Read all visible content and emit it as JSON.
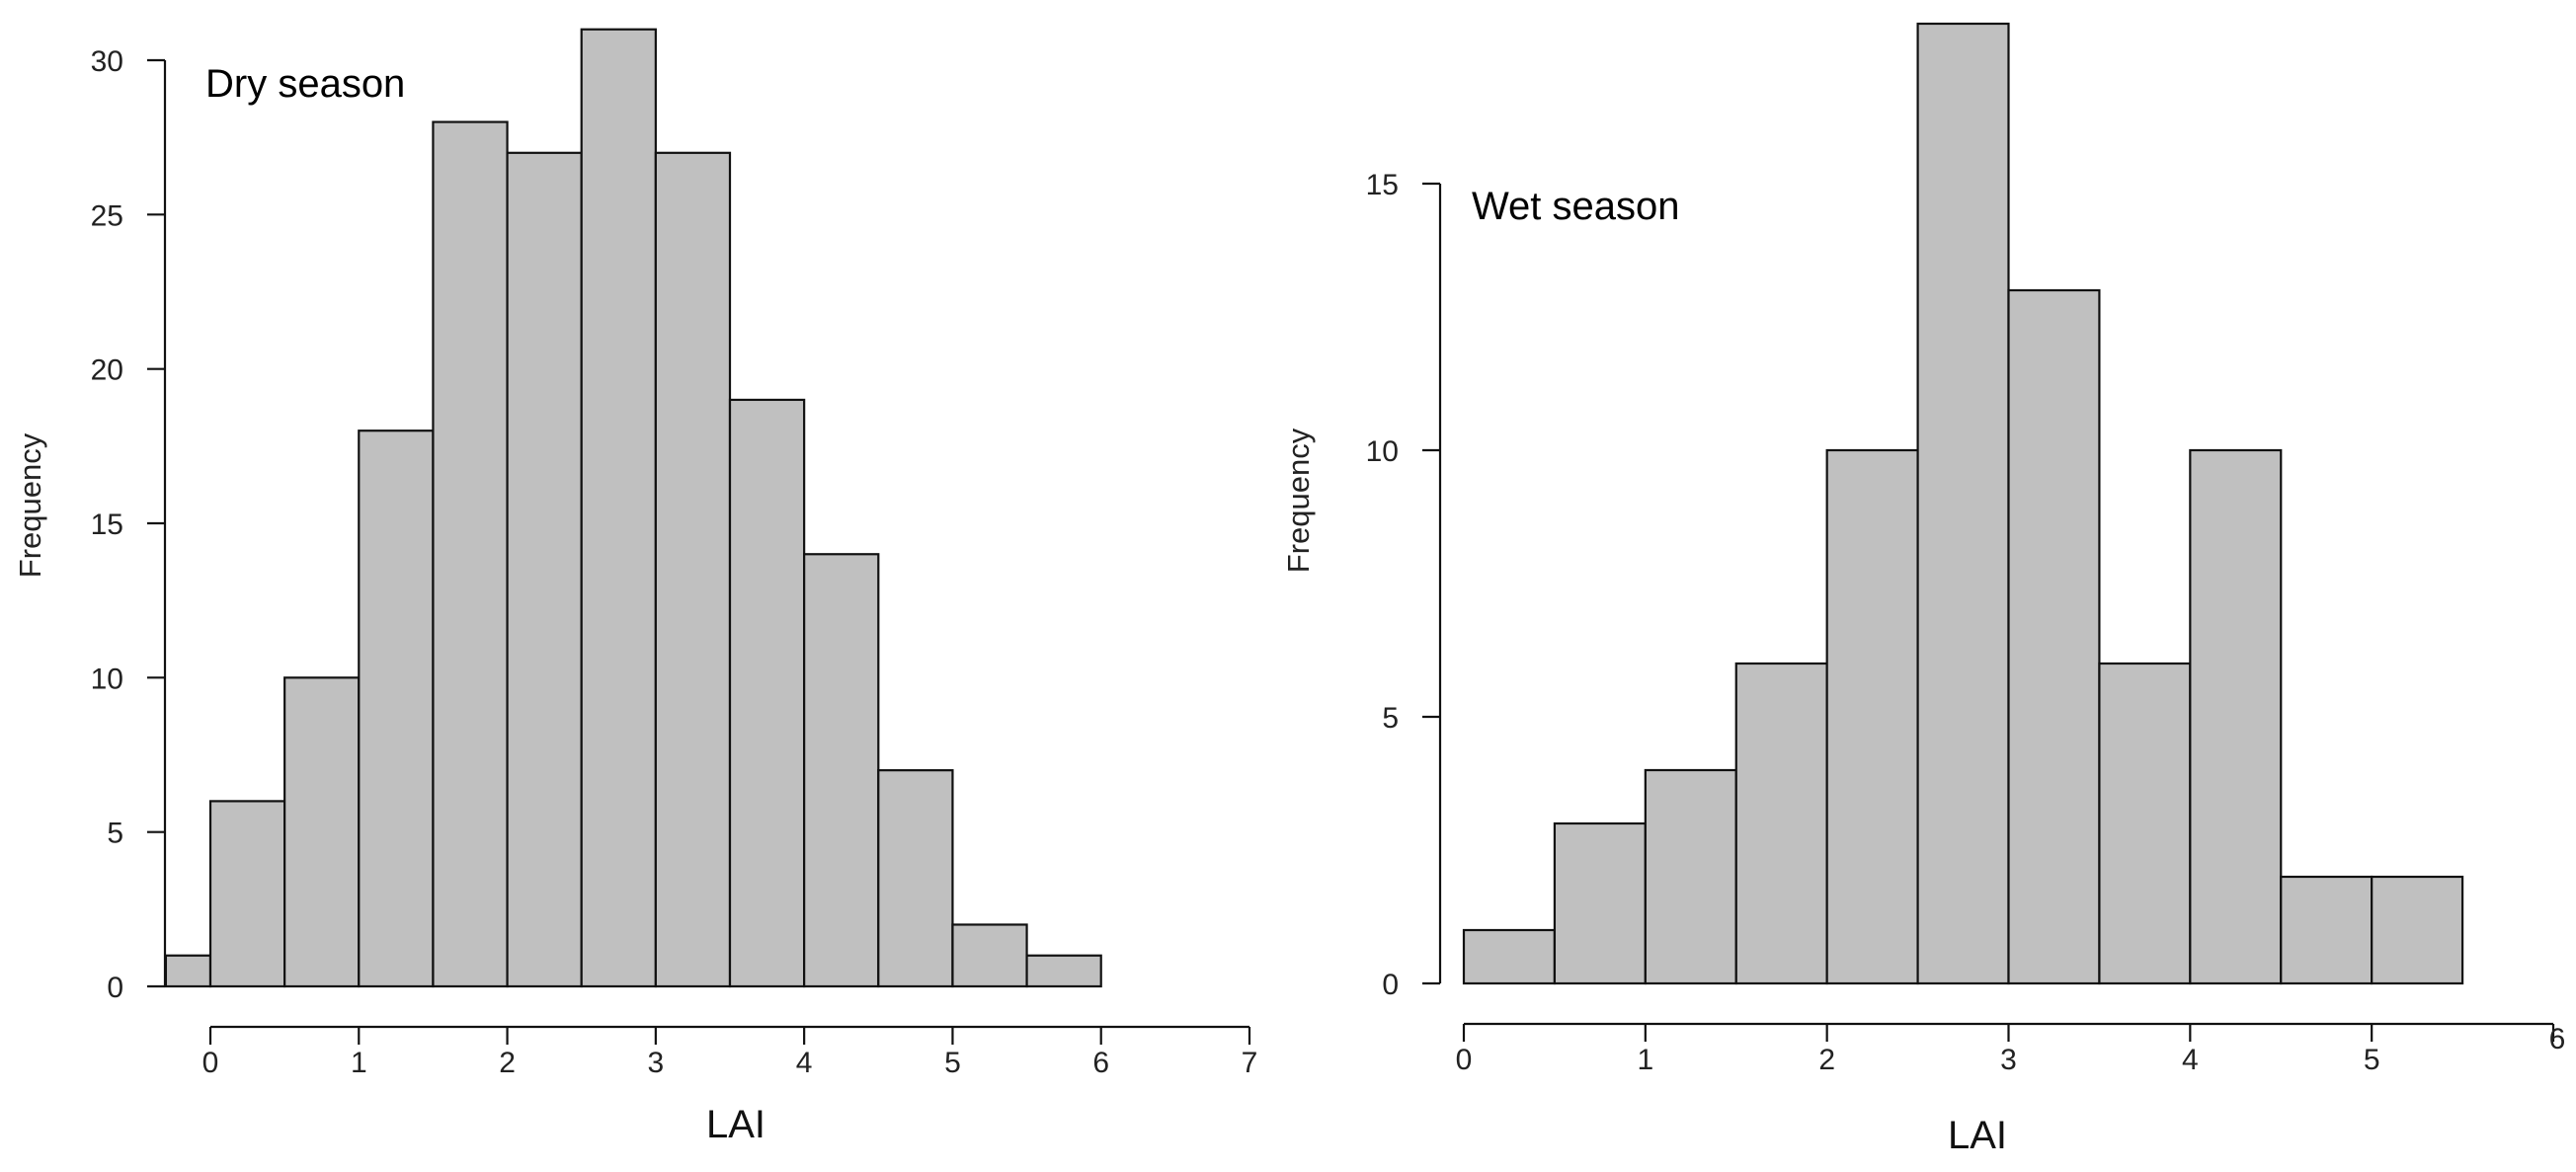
{
  "colors": {
    "bar_fill": "#c0c0c0",
    "bar_stroke": "#111111",
    "axis": "#111111"
  },
  "chart_data": [
    {
      "type": "bar",
      "title": "Dry season",
      "xlabel": "LAI",
      "ylabel": "Frequency",
      "bin_edges": [
        -0.3,
        0,
        0.5,
        1,
        1.5,
        2,
        2.5,
        3,
        3.5,
        4,
        4.5,
        5,
        5.5,
        6
      ],
      "values": [
        1,
        6,
        10,
        18,
        28,
        27,
        31,
        27,
        19,
        14,
        7,
        2,
        1
      ],
      "xlim": [
        0,
        7
      ],
      "xticks": [
        "0",
        "1",
        "2",
        "3",
        "4",
        "5",
        "6",
        "7"
      ],
      "ylim": [
        0,
        30
      ],
      "yticks": [
        "0",
        "5",
        "10",
        "15",
        "20",
        "25",
        "30"
      ],
      "grid": false,
      "legend": "none"
    },
    {
      "type": "bar",
      "title": "Wet season",
      "xlabel": "LAI",
      "ylabel": "Frequency",
      "bin_edges": [
        0,
        0.5,
        1,
        1.5,
        2,
        2.5,
        3,
        3.5,
        4,
        4.5,
        5,
        5.5
      ],
      "values": [
        1,
        3,
        4,
        6,
        10,
        18,
        13,
        6,
        10,
        2,
        2
      ],
      "xlim": [
        0,
        6
      ],
      "xticks": [
        "0",
        "1",
        "2",
        "3",
        "4",
        "5",
        "6"
      ],
      "ylim": [
        0,
        15
      ],
      "yticks": [
        "0",
        "5",
        "10",
        "15"
      ],
      "grid": false,
      "legend": "none"
    }
  ]
}
